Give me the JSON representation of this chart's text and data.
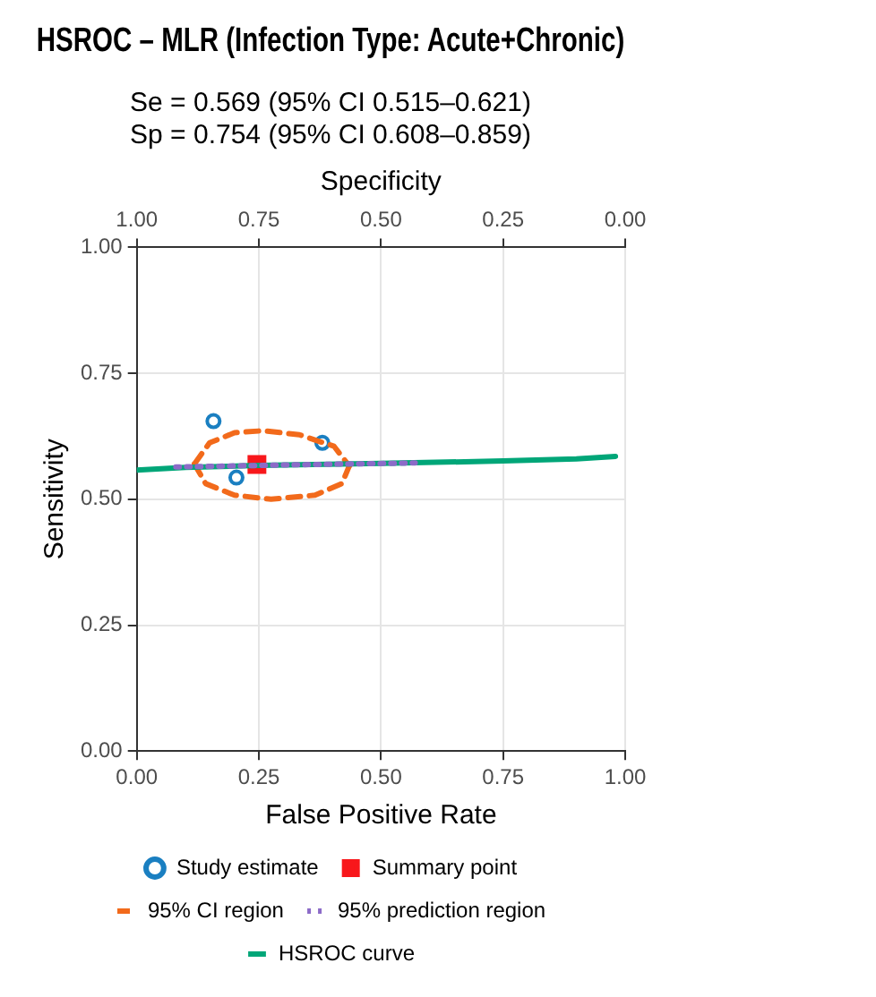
{
  "chart_data": {
    "type": "scatter",
    "title": "HSROC – MLR (Infection Type: Acute+Chronic)",
    "subtitle": "Se = 0.569 (95% CI 0.515–0.621)\nSp = 0.754 (95% CI 0.608–0.859)",
    "xlabel": "False Positive Rate",
    "ylabel": "Sensitivity",
    "x2label": "Specificity",
    "xlim": [
      0,
      1
    ],
    "ylim": [
      0,
      1
    ],
    "x2lim": [
      1,
      0
    ],
    "xticks": [
      {
        "value": 0,
        "label": "0.00"
      },
      {
        "value": 0.25,
        "label": "0.25"
      },
      {
        "value": 0.5,
        "label": "0.50"
      },
      {
        "value": 0.75,
        "label": "0.75"
      },
      {
        "value": 1,
        "label": "1.00"
      }
    ],
    "yticks": [
      {
        "value": 0,
        "label": "0.00"
      },
      {
        "value": 0.25,
        "label": "0.25"
      },
      {
        "value": 0.5,
        "label": "0.50"
      },
      {
        "value": 0.75,
        "label": "0.75"
      },
      {
        "value": 1,
        "label": "1.00"
      }
    ],
    "x2ticks": [
      {
        "value": 1,
        "label": "1.00"
      },
      {
        "value": 0.75,
        "label": "0.75"
      },
      {
        "value": 0.5,
        "label": "0.50"
      },
      {
        "value": 0.25,
        "label": "0.25"
      },
      {
        "value": 0,
        "label": "0.00"
      }
    ],
    "grid": true,
    "legend": "bottom",
    "series": [
      {
        "name": "Study estimate",
        "type": "scatter",
        "marker": "circle",
        "color": "#1a7fc1",
        "x": [
          0.157,
          0.204,
          0.38
        ],
        "values": [
          0.655,
          0.543,
          0.612
        ]
      },
      {
        "name": "Summary point",
        "type": "scatter",
        "marker": "square",
        "color": "#f8171b",
        "x": [
          0.246
        ],
        "values": [
          0.569
        ]
      },
      {
        "name": "95% CI region",
        "type": "line",
        "marker": "none",
        "line_style": "dashed",
        "color": "#f26a1b",
        "x": [
          0.118,
          0.149,
          0.2,
          0.259,
          0.333,
          0.404,
          0.435
        ],
        "values": [
          0.57,
          0.612,
          0.632,
          0.636,
          0.628,
          0.605,
          0.566
        ]
      },
      {
        "type": "line",
        "marker": "none",
        "line_style": "dashed",
        "color": "#f26a1b",
        "x": [
          0.118,
          0.141,
          0.2,
          0.275,
          0.365,
          0.42,
          0.435
        ],
        "values": [
          0.57,
          0.531,
          0.508,
          0.5,
          0.508,
          0.531,
          0.566
        ]
      },
      {
        "name": "95% prediction region",
        "type": "line",
        "marker": "none",
        "line_style": "dotted",
        "color": "#8c6bc8",
        "x": [
          0.08,
          0.3,
          0.57
        ],
        "values": [
          0.564,
          0.568,
          0.572
        ]
      },
      {
        "name": "HSROC curve",
        "type": "line",
        "marker": "none",
        "line_style": "solid",
        "color": "#00a678",
        "x": [
          0,
          0.1,
          0.25,
          0.5,
          0.75,
          0.9,
          0.98
        ],
        "values": [
          0.558,
          0.563,
          0.567,
          0.571,
          0.576,
          0.58,
          0.585
        ]
      }
    ]
  }
}
